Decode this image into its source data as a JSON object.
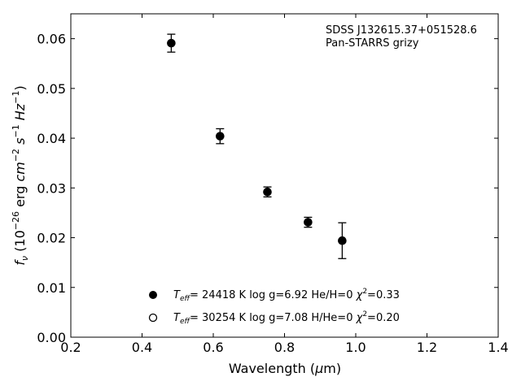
{
  "chart_data": {
    "type": "scatter",
    "xlabel": "Wavelength (μm)",
    "ylabel": "f_ν (10^-26 erg cm^-2 s^-1 Hz^-1)",
    "xlim": [
      0.2,
      1.4
    ],
    "ylim": [
      0.0,
      0.065
    ],
    "xticks": [
      "0.2",
      "0.4",
      "0.6",
      "0.8",
      "1.0",
      "1.2",
      "1.4"
    ],
    "yticks": [
      "0.00",
      "0.01",
      "0.02",
      "0.03",
      "0.04",
      "0.05",
      "0.06"
    ],
    "grid": false,
    "annotation": {
      "line1": "SDSS J132615.37+051528.6",
      "line2": "Pan-STARRS grizy"
    },
    "series": [
      {
        "marker": "filled-circle",
        "x": [
          0.482,
          0.619,
          0.752,
          0.866,
          0.962
        ],
        "y": [
          0.0591,
          0.0404,
          0.0292,
          0.0231,
          0.0194
        ],
        "yerr": [
          0.0018,
          0.0015,
          0.001,
          0.001,
          0.0036
        ]
      }
    ],
    "legend": {
      "placement": "lower-center",
      "entries": [
        {
          "marker": "filled",
          "teff_value": "= 24418 K",
          "logg": "log g=6.92",
          "comp": "He/H=0",
          "chi_value": "=0.33"
        },
        {
          "marker": "open",
          "teff_value": "= 30254 K",
          "logg": "log g=7.08",
          "comp": "H/He=0",
          "chi_value": "=0.20"
        }
      ]
    }
  }
}
